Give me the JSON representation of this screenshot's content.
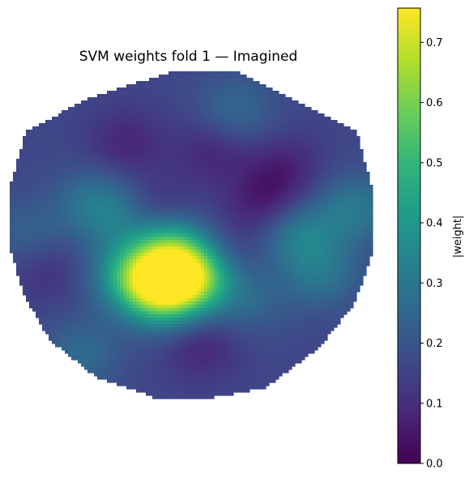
{
  "chart_data": {
    "type": "heatmap",
    "title": "SVM weights fold 1 — Imagined",
    "colormap": "viridis",
    "colorbar": {
      "label": "|weight|",
      "vmin": 0.0,
      "vmax": 0.757,
      "ticks": [
        "0.0",
        "0.1",
        "0.2",
        "0.3",
        "0.4",
        "0.5",
        "0.6",
        "0.7"
      ]
    },
    "axes_visible": false,
    "grid": false,
    "sources": [
      {
        "u": 0.42,
        "v": 0.66,
        "w": 0.55
      },
      {
        "u": 0.52,
        "v": 0.62,
        "w": 0.45
      },
      {
        "u": 0.33,
        "v": 0.62,
        "w": 0.22
      },
      {
        "u": 0.44,
        "v": 0.54,
        "w": 0.3
      },
      {
        "u": 0.3,
        "v": 0.44,
        "w": 0.12
      },
      {
        "u": 0.22,
        "v": 0.4,
        "w": 0.1
      },
      {
        "u": 0.8,
        "v": 0.5,
        "w": 0.16
      },
      {
        "u": 0.86,
        "v": 0.62,
        "w": 0.12
      },
      {
        "u": 0.95,
        "v": 0.42,
        "w": 0.14
      },
      {
        "u": 0.62,
        "v": 0.12,
        "w": 0.1
      },
      {
        "u": 0.2,
        "v": 0.86,
        "w": 0.1
      },
      {
        "u": 0.05,
        "v": 0.5,
        "w": 0.08
      },
      {
        "u": 0.66,
        "v": 0.7,
        "w": 0.08
      }
    ],
    "sinks": [
      {
        "u": 0.56,
        "v": 0.58,
        "w": 0.14
      },
      {
        "u": 0.4,
        "v": 0.44,
        "w": 0.1
      },
      {
        "u": 0.7,
        "v": 0.4,
        "w": 0.1
      },
      {
        "u": 0.32,
        "v": 0.22,
        "w": 0.08
      },
      {
        "u": 0.56,
        "v": 0.24,
        "w": 0.08
      },
      {
        "u": 0.76,
        "v": 0.3,
        "w": 0.08
      },
      {
        "u": 0.53,
        "v": 0.84,
        "w": 0.08
      },
      {
        "u": 0.1,
        "v": 0.6,
        "w": 0.06
      }
    ],
    "baseline": 0.16
  }
}
